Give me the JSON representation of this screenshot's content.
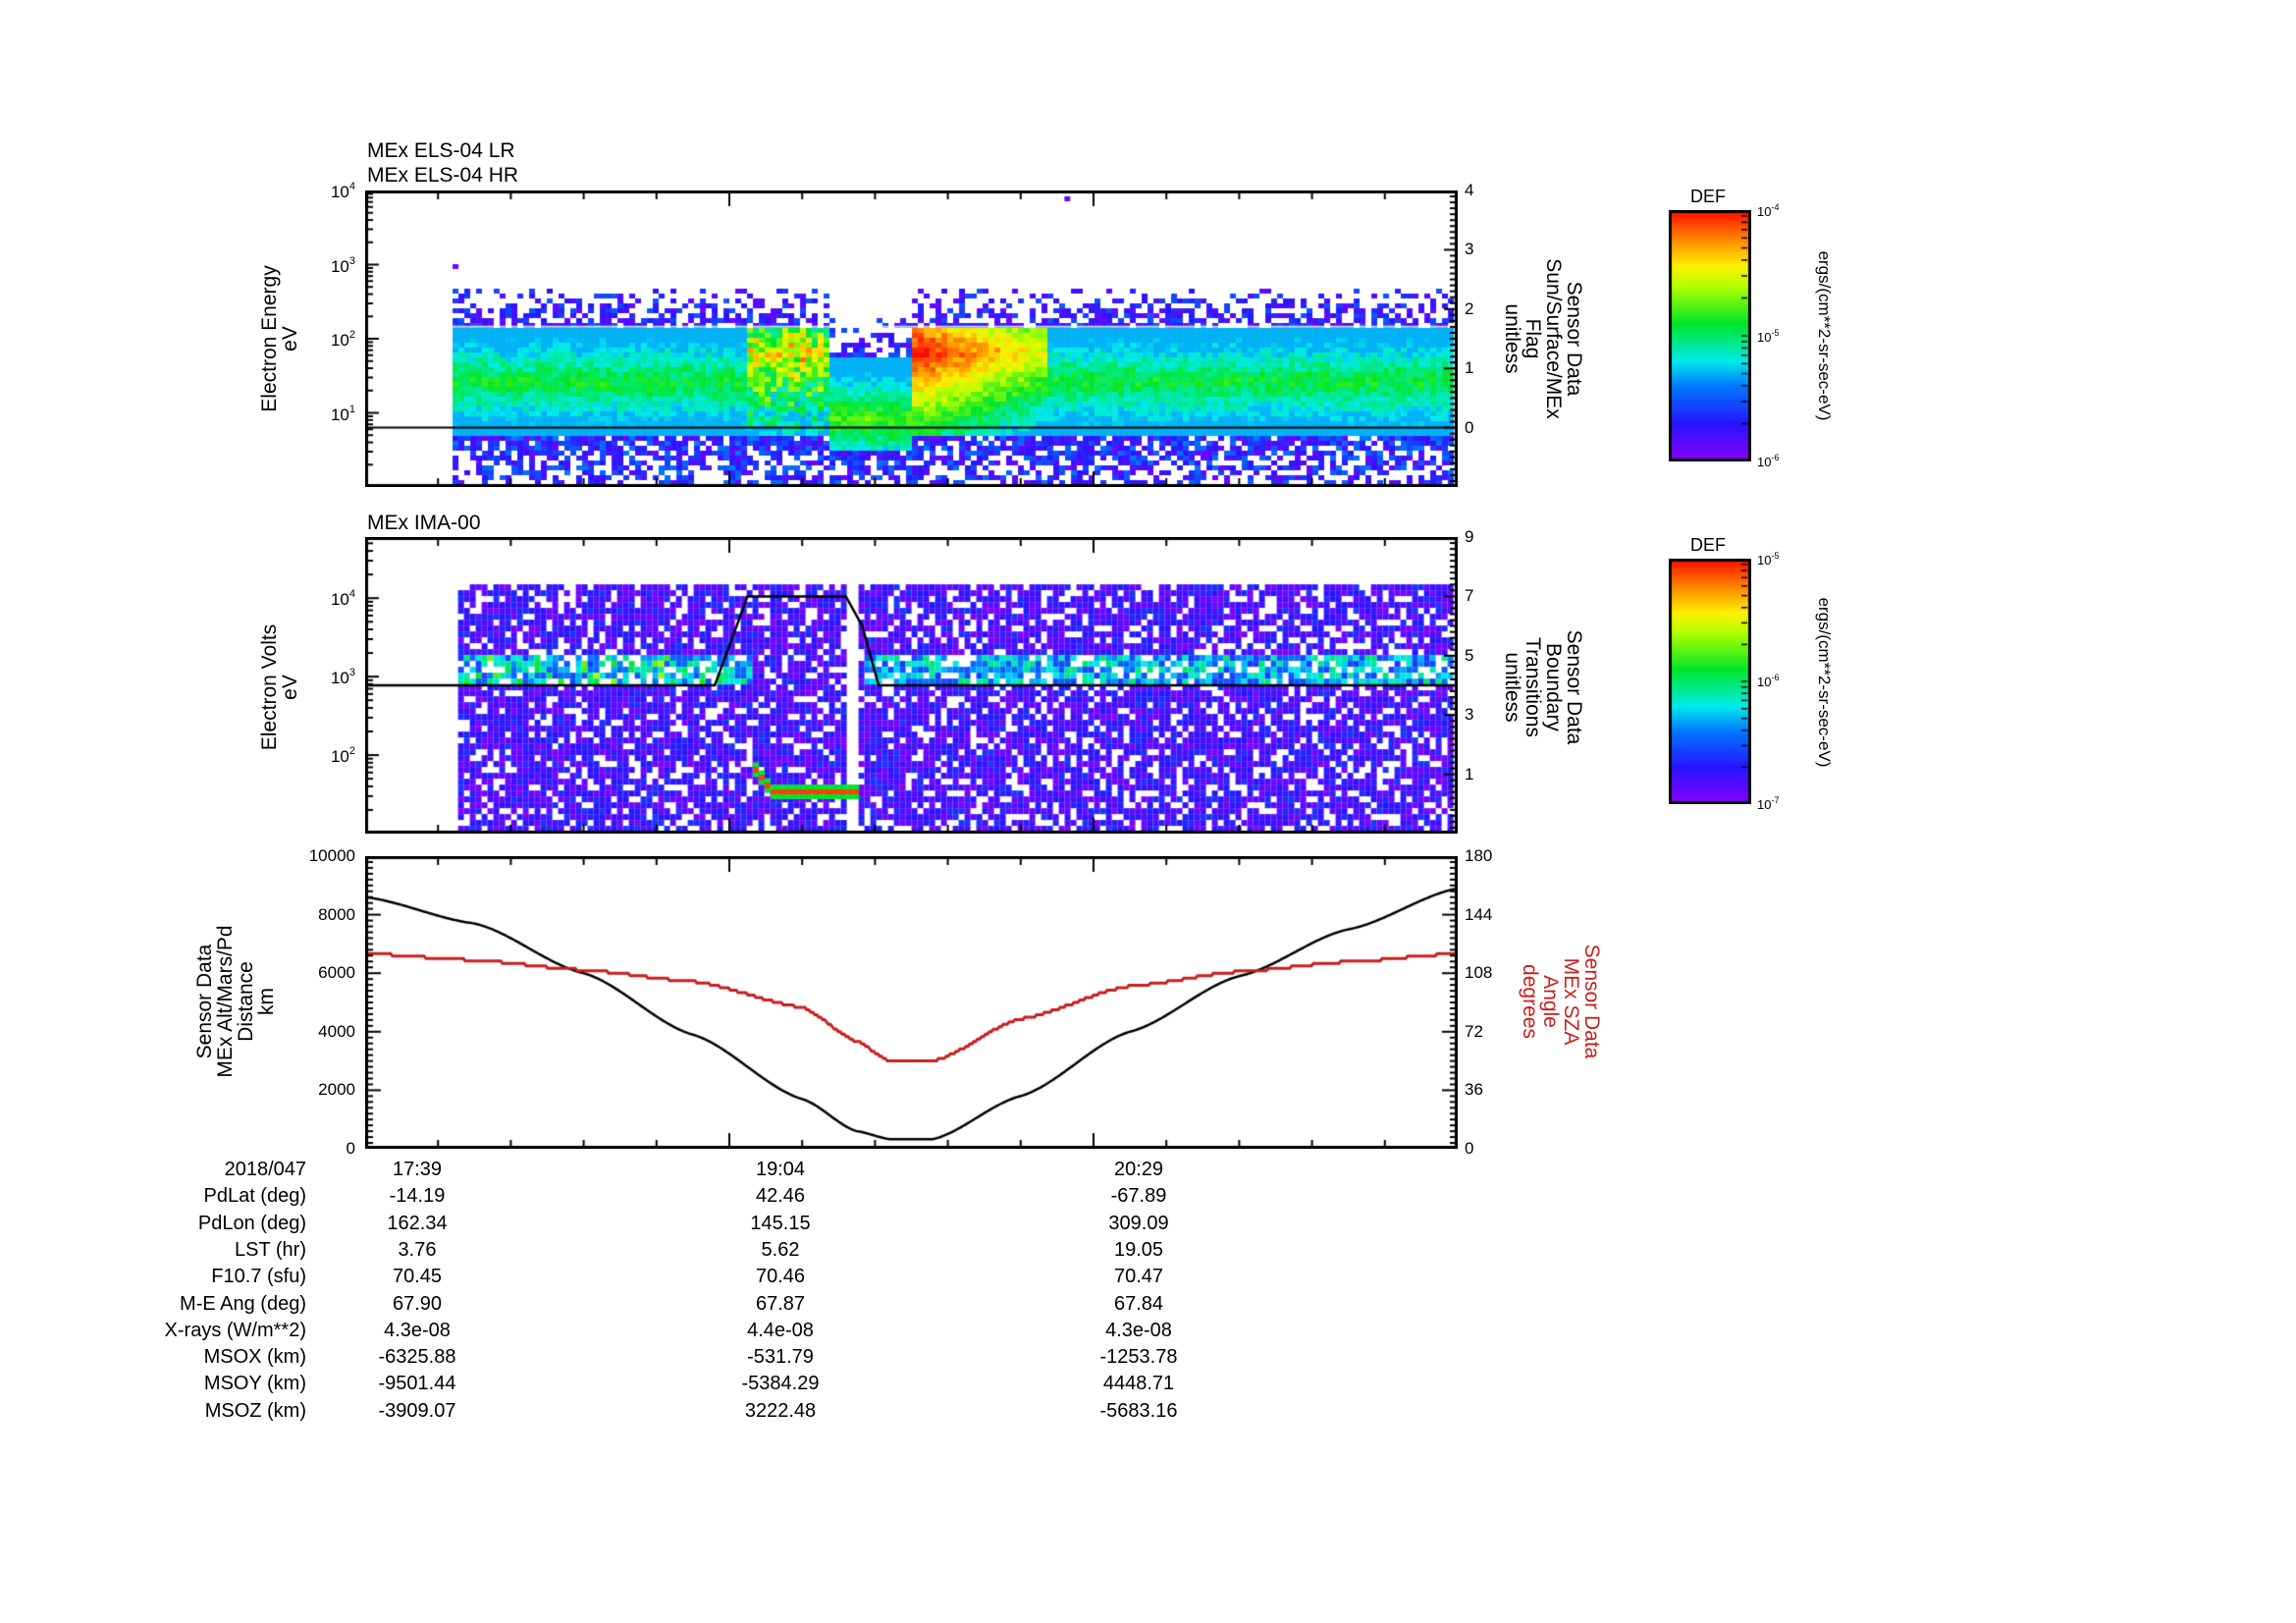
{
  "chart_data": [
    {
      "type": "heatmap",
      "title": [
        "MEx ELS-04 LR",
        "MEx ELS-04 HR"
      ],
      "ylabel": [
        "Electron Energy",
        "eV"
      ],
      "yscale": "log",
      "ylim": [
        1,
        10000
      ],
      "yticks": [
        "10^1",
        "10^2",
        "10^3",
        "10^4"
      ],
      "y2label": [
        "Sensor Data",
        "Sun/Surface/MEx",
        "Flag",
        "unitless"
      ],
      "y2lim": [
        -1,
        4
      ],
      "y2ticks": [
        "0",
        "1",
        "2",
        "3",
        "4"
      ],
      "overlay_line": {
        "name": "Sun/Surface/MEx Flag",
        "value": 0
      },
      "data_start_frac": 0.08,
      "band_low_eV": 5,
      "band_high_eV": 150,
      "features": [
        {
          "x_frac": 0.42,
          "x_end_frac": 0.5,
          "description": "low flux / shifted band (shadow)"
        },
        {
          "x_frac": 0.5,
          "x_end_frac": 0.62,
          "description": "intense red flux ~50-150 eV"
        }
      ],
      "colorbar": {
        "title": "DEF",
        "min": "10^-6",
        "mid": "10^-5",
        "max": "10^-4",
        "unit": "ergs/(cm**2-sr-sec-eV)"
      }
    },
    {
      "type": "heatmap",
      "title": [
        "MEx IMA-00"
      ],
      "ylabel": [
        "Electron Volts",
        "eV"
      ],
      "yscale": "log",
      "ylim": [
        10,
        60000
      ],
      "yticks": [
        "10^2",
        "10^3",
        "10^4"
      ],
      "y2label": [
        "Sensor Data",
        "Boundary",
        "Transitions",
        "unitless"
      ],
      "y2lim": [
        -1,
        9
      ],
      "y2ticks": [
        "1",
        "3",
        "5",
        "7",
        "9"
      ],
      "overlay_line": {
        "name": "Boundary Transitions",
        "x": [
          0.0,
          0.32,
          0.34,
          0.35,
          0.44,
          0.455,
          0.47,
          1.0
        ],
        "y": [
          4,
          4,
          6,
          7,
          7,
          6,
          4,
          4
        ]
      },
      "data_gap_frac": [
        0.437,
        0.447
      ],
      "colorbar": {
        "title": "DEF",
        "min": "10^-7",
        "mid": "10^-6",
        "max": "10^-5",
        "unit": "ergs/(cm**2-sr-sec-eV)"
      }
    },
    {
      "type": "line",
      "ylabel": [
        "Sensor Data",
        "MEx Alt/Mars/Pd",
        "Distance",
        "km"
      ],
      "ylim": [
        0,
        10000
      ],
      "yticks": [
        "0",
        "2000",
        "4000",
        "6000",
        "8000",
        "10000"
      ],
      "y2label": [
        "Sensor Data",
        "MEx SZA",
        "Angle",
        "degrees"
      ],
      "y2lim": [
        0,
        180
      ],
      "y2ticks": [
        "0",
        "36",
        "72",
        "108",
        "144",
        "180"
      ],
      "series": [
        {
          "name": "MEx Alt/Mars/Pd Distance (km)",
          "color": "#000000",
          "axis": "left",
          "x": [
            0.0,
            0.1,
            0.2,
            0.3,
            0.4,
            0.45,
            0.48,
            0.52,
            0.6,
            0.7,
            0.8,
            0.9,
            1.0
          ],
          "values": [
            8600,
            7700,
            6000,
            3900,
            1700,
            600,
            330,
            330,
            1800,
            4000,
            5900,
            7500,
            8900
          ]
        },
        {
          "name": "MEx SZA Angle (degrees)",
          "color": "#c81e1e",
          "axis": "right",
          "x": [
            0.0,
            0.1,
            0.2,
            0.3,
            0.4,
            0.45,
            0.48,
            0.52,
            0.6,
            0.7,
            0.8,
            0.9,
            1.0
          ],
          "values": [
            120,
            116,
            110,
            103,
            87,
            66,
            54,
            54,
            80,
            100,
            109,
            115,
            120
          ]
        }
      ]
    }
  ],
  "ephemeris": {
    "date": "2018/047",
    "labels": [
      "PdLat (deg)",
      "PdLon (deg)",
      "LST (hr)",
      "F10.7 (sfu)",
      "M-E Ang (deg)",
      "X-rays (W/m**2)",
      "MSOX (km)",
      "MSOY (km)",
      "MSOZ (km)"
    ],
    "columns": [
      {
        "time": "17:39",
        "values": [
          "-14.19",
          "162.34",
          "3.76",
          "70.45",
          "67.90",
          "4.3e-08",
          "-6325.88",
          "-9501.44",
          "-3909.07"
        ]
      },
      {
        "time": "19:04",
        "values": [
          "42.46",
          "145.15",
          "5.62",
          "70.46",
          "67.87",
          "4.4e-08",
          "-531.79",
          "-5384.29",
          "3222.48"
        ]
      },
      {
        "time": "20:29",
        "values": [
          "-67.89",
          "309.09",
          "19.05",
          "70.47",
          "67.84",
          "4.3e-08",
          "-1253.78",
          "4448.71",
          "-5683.16"
        ]
      }
    ]
  },
  "colors": {
    "sza_red": "#c81e1e",
    "axis": "#000000"
  }
}
